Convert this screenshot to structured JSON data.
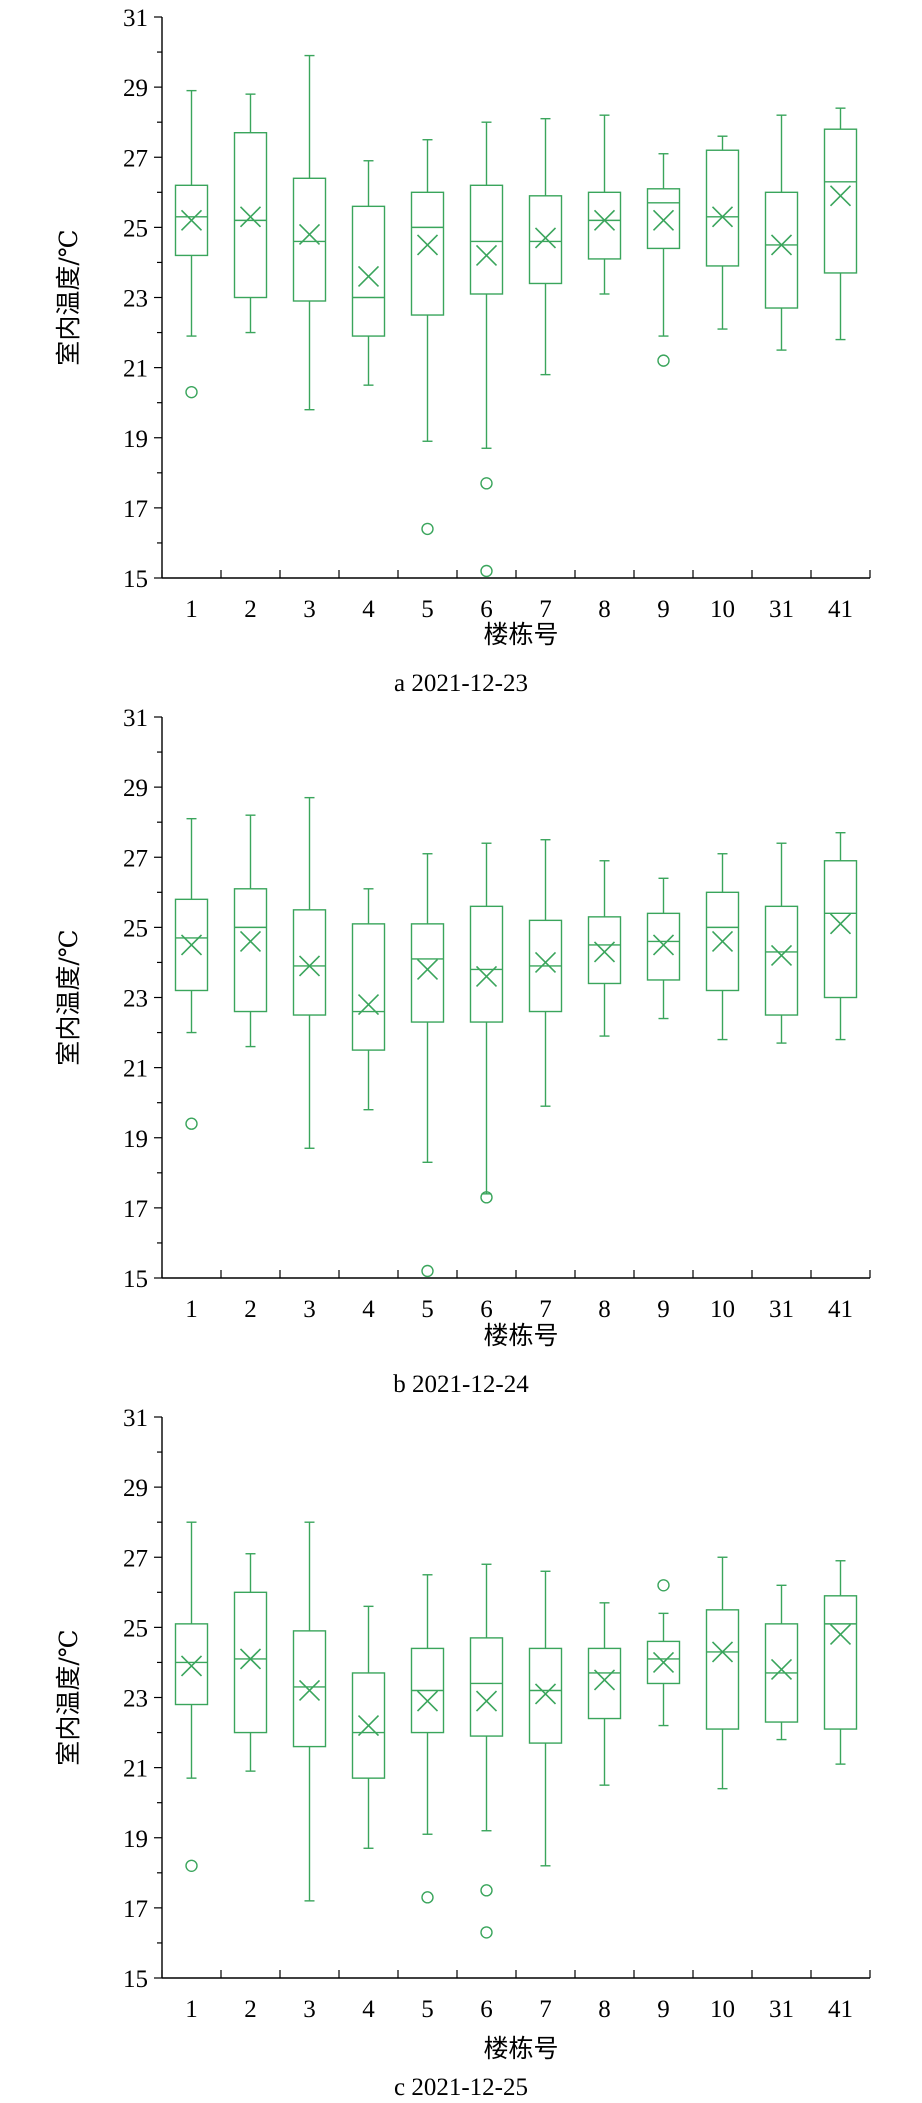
{
  "colors": {
    "box": "#3aa55c",
    "axis": "#000000",
    "text": "#000000"
  },
  "chart_data": [
    {
      "type": "boxplot",
      "caption": "a  2021-12-23",
      "xlabel": "楼栋号",
      "ylabel": "室内温度/℃",
      "ylim": [
        15,
        31
      ],
      "yticks": [
        "15",
        "17",
        "19",
        "21",
        "23",
        "25",
        "27",
        "29",
        "31"
      ],
      "categories": [
        "1",
        "2",
        "3",
        "4",
        "5",
        "6",
        "7",
        "8",
        "9",
        "10",
        "31",
        "41"
      ],
      "boxes": [
        {
          "min": 21.9,
          "q1": 24.2,
          "median": 25.3,
          "q3": 26.2,
          "max": 28.9,
          "mean": 25.2,
          "outliers": [
            20.3
          ]
        },
        {
          "min": 22.0,
          "q1": 23.0,
          "median": 25.2,
          "q3": 27.7,
          "max": 28.8,
          "mean": 25.3,
          "outliers": []
        },
        {
          "min": 19.8,
          "q1": 22.9,
          "median": 24.6,
          "q3": 26.4,
          "max": 29.9,
          "mean": 24.8,
          "outliers": []
        },
        {
          "min": 20.5,
          "q1": 21.9,
          "median": 23.0,
          "q3": 25.6,
          "max": 26.9,
          "mean": 23.6,
          "outliers": []
        },
        {
          "min": 18.9,
          "q1": 22.5,
          "median": 25.0,
          "q3": 26.0,
          "max": 27.5,
          "mean": 24.5,
          "outliers": [
            16.4
          ]
        },
        {
          "min": 18.7,
          "q1": 23.1,
          "median": 24.6,
          "q3": 26.2,
          "max": 28.0,
          "mean": 24.2,
          "outliers": [
            17.7,
            15.2
          ]
        },
        {
          "min": 20.8,
          "q1": 23.4,
          "median": 24.6,
          "q3": 25.9,
          "max": 28.1,
          "mean": 24.7,
          "outliers": []
        },
        {
          "min": 23.1,
          "q1": 24.1,
          "median": 25.2,
          "q3": 26.0,
          "max": 28.2,
          "mean": 25.2,
          "outliers": []
        },
        {
          "min": 21.9,
          "q1": 24.4,
          "median": 25.7,
          "q3": 26.1,
          "max": 27.1,
          "mean": 25.2,
          "outliers": [
            21.2
          ]
        },
        {
          "min": 22.1,
          "q1": 23.9,
          "median": 25.3,
          "q3": 27.2,
          "max": 27.6,
          "mean": 25.3,
          "outliers": []
        },
        {
          "min": 21.5,
          "q1": 22.7,
          "median": 24.5,
          "q3": 26.0,
          "max": 28.2,
          "mean": 24.5,
          "outliers": []
        },
        {
          "min": 21.8,
          "q1": 23.7,
          "median": 26.3,
          "q3": 27.8,
          "max": 28.4,
          "mean": 25.9,
          "outliers": []
        }
      ]
    },
    {
      "type": "boxplot",
      "caption": "b  2021-12-24",
      "xlabel": "楼栋号",
      "ylabel": "室内温度/℃",
      "ylim": [
        15,
        31
      ],
      "yticks": [
        "15",
        "17",
        "19",
        "21",
        "23",
        "25",
        "27",
        "29",
        "31"
      ],
      "categories": [
        "1",
        "2",
        "3",
        "4",
        "5",
        "6",
        "7",
        "8",
        "9",
        "10",
        "31",
        "41"
      ],
      "boxes": [
        {
          "min": 22.0,
          "q1": 23.2,
          "median": 24.7,
          "q3": 25.8,
          "max": 28.1,
          "mean": 24.5,
          "outliers": [
            19.4
          ]
        },
        {
          "min": 21.6,
          "q1": 22.6,
          "median": 25.0,
          "q3": 26.1,
          "max": 28.2,
          "mean": 24.6,
          "outliers": []
        },
        {
          "min": 18.7,
          "q1": 22.5,
          "median": 23.9,
          "q3": 25.5,
          "max": 28.7,
          "mean": 23.9,
          "outliers": []
        },
        {
          "min": 19.8,
          "q1": 21.5,
          "median": 22.6,
          "q3": 25.1,
          "max": 26.1,
          "mean": 22.8,
          "outliers": []
        },
        {
          "min": 18.3,
          "q1": 22.3,
          "median": 24.1,
          "q3": 25.1,
          "max": 27.1,
          "mean": 23.8,
          "outliers": [
            15.2
          ]
        },
        {
          "min": 17.4,
          "q1": 22.3,
          "median": 23.8,
          "q3": 25.6,
          "max": 27.4,
          "mean": 23.6,
          "outliers": [
            17.3
          ]
        },
        {
          "min": 19.9,
          "q1": 22.6,
          "median": 23.9,
          "q3": 25.2,
          "max": 27.5,
          "mean": 24.0,
          "outliers": []
        },
        {
          "min": 21.9,
          "q1": 23.4,
          "median": 24.5,
          "q3": 25.3,
          "max": 26.9,
          "mean": 24.3,
          "outliers": []
        },
        {
          "min": 22.4,
          "q1": 23.5,
          "median": 24.6,
          "q3": 25.4,
          "max": 26.4,
          "mean": 24.5,
          "outliers": []
        },
        {
          "min": 21.8,
          "q1": 23.2,
          "median": 25.0,
          "q3": 26.0,
          "max": 27.1,
          "mean": 24.6,
          "outliers": []
        },
        {
          "min": 21.7,
          "q1": 22.5,
          "median": 24.3,
          "q3": 25.6,
          "max": 27.4,
          "mean": 24.2,
          "outliers": []
        },
        {
          "min": 21.8,
          "q1": 23.0,
          "median": 25.4,
          "q3": 26.9,
          "max": 27.7,
          "mean": 25.1,
          "outliers": []
        }
      ]
    },
    {
      "type": "boxplot",
      "caption": "c  2021-12-25",
      "xlabel": "楼栋号",
      "ylabel": "室内温度/℃",
      "ylim": [
        15,
        31
      ],
      "yticks": [
        "15",
        "17",
        "19",
        "21",
        "23",
        "25",
        "27",
        "29",
        "31"
      ],
      "categories": [
        "1",
        "2",
        "3",
        "4",
        "5",
        "6",
        "7",
        "8",
        "9",
        "10",
        "31",
        "41"
      ],
      "boxes": [
        {
          "min": 20.7,
          "q1": 22.8,
          "median": 24.0,
          "q3": 25.1,
          "max": 28.0,
          "mean": 23.9,
          "outliers": [
            18.2
          ]
        },
        {
          "min": 20.9,
          "q1": 22.0,
          "median": 24.1,
          "q3": 26.0,
          "max": 27.1,
          "mean": 24.1,
          "outliers": []
        },
        {
          "min": 17.2,
          "q1": 21.6,
          "median": 23.3,
          "q3": 24.9,
          "max": 28.0,
          "mean": 23.2,
          "outliers": []
        },
        {
          "min": 18.7,
          "q1": 20.7,
          "median": 22.0,
          "q3": 23.7,
          "max": 25.6,
          "mean": 22.2,
          "outliers": []
        },
        {
          "min": 19.1,
          "q1": 22.0,
          "median": 23.2,
          "q3": 24.4,
          "max": 26.5,
          "mean": 22.9,
          "outliers": [
            17.3
          ]
        },
        {
          "min": 19.2,
          "q1": 21.9,
          "median": 23.4,
          "q3": 24.7,
          "max": 26.8,
          "mean": 22.9,
          "outliers": [
            17.5,
            16.3
          ]
        },
        {
          "min": 18.2,
          "q1": 21.7,
          "median": 23.2,
          "q3": 24.4,
          "max": 26.6,
          "mean": 23.1,
          "outliers": []
        },
        {
          "min": 20.5,
          "q1": 22.4,
          "median": 23.7,
          "q3": 24.4,
          "max": 25.7,
          "mean": 23.5,
          "outliers": []
        },
        {
          "min": 22.2,
          "q1": 23.4,
          "median": 24.1,
          "q3": 24.6,
          "max": 25.4,
          "mean": 24.0,
          "outliers": [
            26.2
          ]
        },
        {
          "min": 20.4,
          "q1": 22.1,
          "median": 24.3,
          "q3": 25.5,
          "max": 27.0,
          "mean": 24.3,
          "outliers": []
        },
        {
          "min": 21.8,
          "q1": 22.3,
          "median": 23.7,
          "q3": 25.1,
          "max": 26.2,
          "mean": 23.8,
          "outliers": []
        },
        {
          "min": 21.1,
          "q1": 22.1,
          "median": 25.1,
          "q3": 25.9,
          "max": 26.9,
          "mean": 24.8,
          "outliers": []
        }
      ]
    }
  ]
}
